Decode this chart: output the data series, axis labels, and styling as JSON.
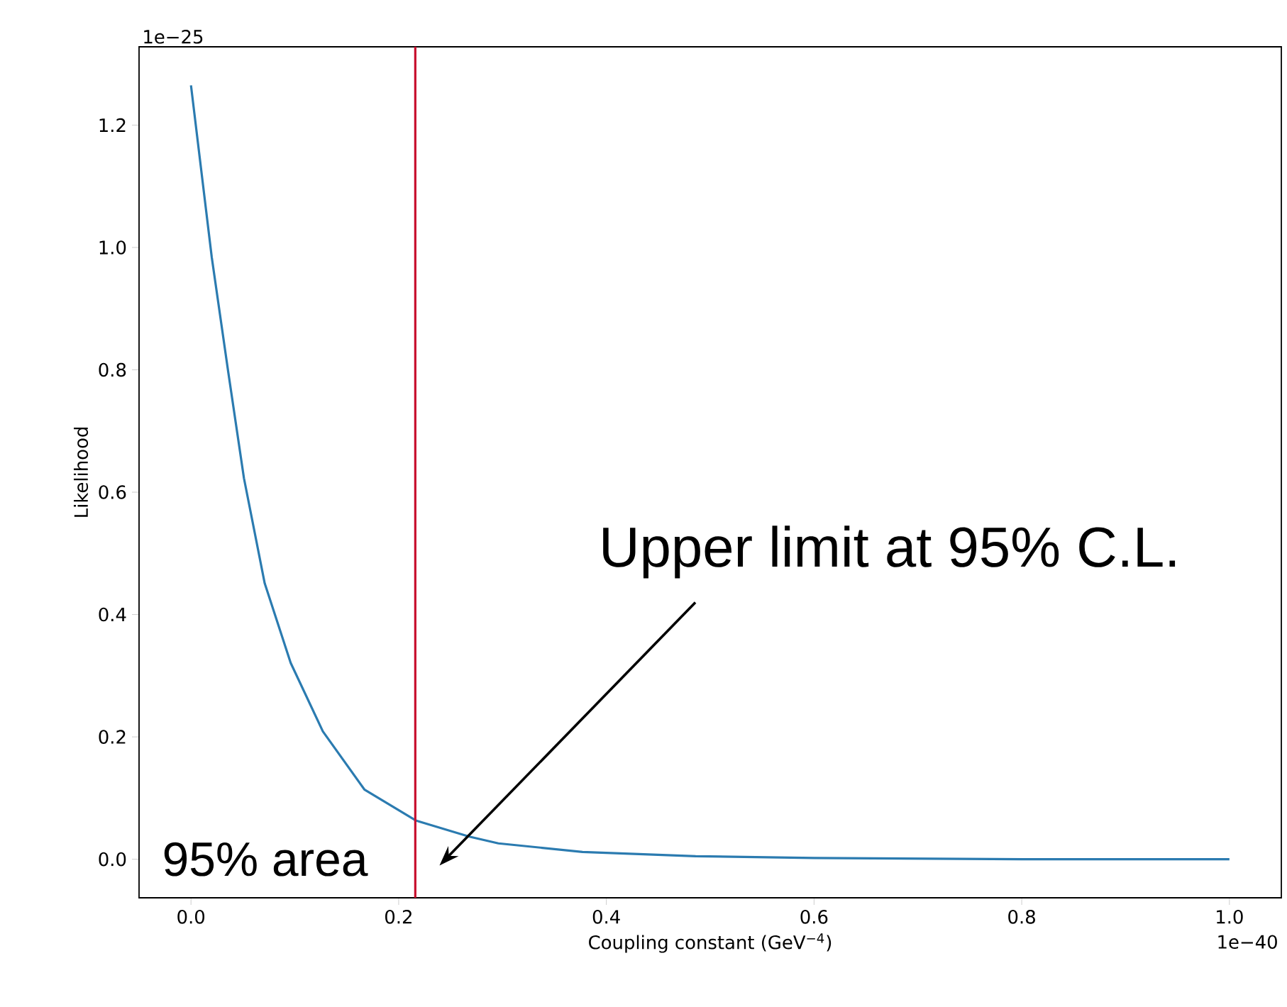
{
  "chart_data": {
    "type": "line",
    "xlabel": "Coupling constant (GeV$^{−4}$)",
    "ylabel": "Likelihood",
    "x": [
      0,
      0.02,
      0.036,
      0.051,
      0.071,
      0.096,
      0.127,
      0.167,
      0.217,
      0.268,
      0.296,
      0.377,
      0.486,
      0.6,
      0.8,
      1.0
    ],
    "series": [
      {
        "color": "#2b7bb0",
        "values": [
          1.265,
          0.984,
          0.795,
          0.623,
          0.451,
          0.321,
          0.209,
          0.114,
          0.063,
          0.037,
          0.026,
          0.012,
          0.005,
          0.002,
          0,
          0
        ]
      }
    ],
    "xlim": [
      -0.05,
      1.05
    ],
    "ylim": [
      -0.063,
      1.328
    ],
    "xticks": [
      {
        "value": 0,
        "label": "0.0"
      },
      0.2,
      0.4,
      0.6,
      0.8,
      {
        "value": 1.0,
        "label": "1.0"
      }
    ],
    "yticks": [
      {
        "value": 0,
        "label": "0.0"
      },
      0.2,
      0.4,
      0.6,
      0.8,
      {
        "value": 1.0,
        "label": "1.0"
      },
      1.2
    ],
    "ref_lines": [
      {
        "axis": "x",
        "value": 0.216,
        "color": "#c8102e"
      }
    ],
    "annotations": [
      "Upper limit at 95% C.L.",
      "95% area",
      "1e−25",
      "1e−40"
    ]
  }
}
